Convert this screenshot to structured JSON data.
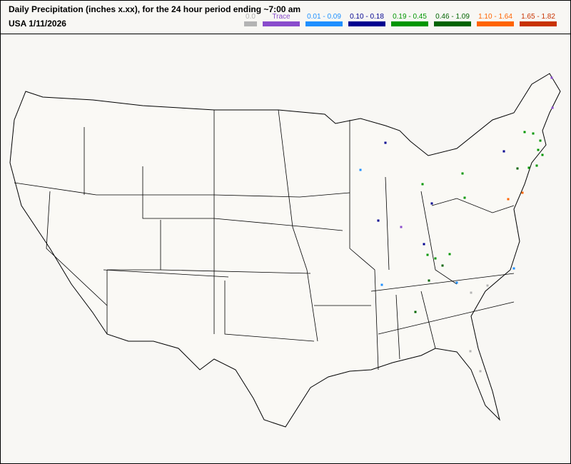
{
  "header": {
    "title": "Daily Precipitation (inches  x.xx),  for the 24 hour period ending ~7:00 am",
    "region_date": "USA 1/11/2026"
  },
  "legend": [
    {
      "label": "0.0",
      "color": "#b4b4b4"
    },
    {
      "label": "Trace",
      "color": "#8a4ccc"
    },
    {
      "label": "0.01 - 0.09",
      "color": "#1e90ff"
    },
    {
      "label": "0.10 - 0.18",
      "color": "#000090"
    },
    {
      "label": "0.19 - 0.45",
      "color": "#009600"
    },
    {
      "label": "0.46 - 1.09",
      "color": "#006400"
    },
    {
      "label": "1.10 - 1.64",
      "color": "#ff6400"
    },
    {
      "label": "1.65 - 1.82",
      "color": "#c83200"
    }
  ],
  "map": {
    "land_color": "#faf9f5",
    "border_color": "#000000"
  }
}
